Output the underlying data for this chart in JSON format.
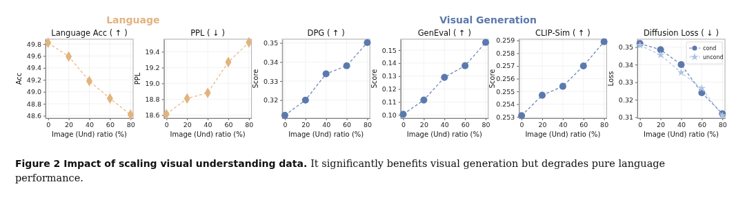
{
  "chart_data": [
    {
      "type": "line",
      "title": "Language Acc ( ↑ )",
      "xlabel": "Image (Und) ratio (%)",
      "ylabel": "Acc",
      "x": [
        0,
        20,
        40,
        60,
        80
      ],
      "xlim": [
        -2.5,
        82.5
      ],
      "xticks": [
        0,
        20,
        40,
        60,
        80
      ],
      "ylim": [
        48.56,
        49.88
      ],
      "yticks": [
        48.6,
        48.8,
        {
          "value": 49,
          "label": "49.0"
        },
        49.2,
        49.4,
        49.6,
        49.8
      ],
      "grid": true,
      "marker": "diamond",
      "line_style": "dashed",
      "series": [
        {
          "color": "#e3b37d",
          "values": [
            49.82,
            49.59,
            49.18,
            48.89,
            48.62
          ]
        }
      ],
      "annotations": [
        "Language",
        "Figure 2  Impact of scaling visual understanding data.",
        "It significantly benefits visual generation but degrades pure language performance."
      ]
    },
    {
      "type": "line",
      "title": "PPL ( ↓ )",
      "xlabel": "Image (Und) ratio (%)",
      "ylabel": "PPL",
      "x": [
        0,
        20,
        40,
        60,
        80
      ],
      "xlim": [
        -2.5,
        82.5
      ],
      "xticks": [
        0,
        20,
        40,
        60,
        80
      ],
      "ylim": [
        18.56,
        19.56
      ],
      "yticks": [
        18.6,
        18.8,
        {
          "value": 19,
          "label": "19.0"
        },
        19.2,
        19.4
      ],
      "grid": true,
      "marker": "diamond",
      "line_style": "dashed",
      "series": [
        {
          "color": "#e3b37d",
          "values": [
            18.61,
            18.81,
            18.88,
            19.27,
            19.52
          ]
        }
      ]
    },
    {
      "type": "line",
      "title": "DPG ( ↑ )",
      "xlabel": "Image (Und) ratio (%)",
      "ylabel": "Score",
      "x": [
        0,
        20,
        40,
        60,
        80
      ],
      "xlim": [
        -2.5,
        82.5
      ],
      "xticks": [
        0,
        20,
        40,
        60,
        80
      ],
      "ylim": [
        0.3105,
        0.352
      ],
      "yticks": [
        0.32,
        0.33,
        0.34,
        0.35
      ],
      "grid": true,
      "marker": "circle",
      "line_style": "dashed",
      "series": [
        {
          "color": "#5b79ad",
          "values": [
            0.312,
            0.32,
            0.3338,
            0.338,
            0.3502
          ]
        }
      ],
      "annotations": [
        "Visual Generation"
      ]
    },
    {
      "type": "line",
      "title": "GenEval ( ↑ )",
      "xlabel": "Image (Und) ratio (%)",
      "ylabel": "Score",
      "x": [
        0,
        20,
        40,
        60,
        80
      ],
      "xlim": [
        -2.5,
        82.5
      ],
      "xticks": [
        0,
        20,
        40,
        60,
        80
      ],
      "ylim": [
        0.0975,
        0.1585
      ],
      "yticks": [
        {
          "value": 0.1,
          "label": "0.10"
        },
        0.11,
        0.12,
        0.13,
        0.14,
        0.15
      ],
      "grid": true,
      "marker": "circle",
      "line_style": "dashed",
      "series": [
        {
          "color": "#5b79ad",
          "values": [
            0.1005,
            0.1115,
            0.129,
            0.138,
            0.156
          ]
        }
      ]
    },
    {
      "type": "line",
      "title": "CLIP-Sim ( ↑ )",
      "xlabel": "Image (Und) ratio (%)",
      "ylabel": "Score",
      "x": [
        0,
        20,
        40,
        60,
        80
      ],
      "xlim": [
        -2.5,
        82.5
      ],
      "xticks": [
        0,
        20,
        40,
        60,
        80
      ],
      "ylim": [
        0.2529,
        0.2591
      ],
      "yticks": [
        0.253,
        0.254,
        0.255,
        0.256,
        0.257,
        0.258,
        0.259
      ],
      "grid": true,
      "marker": "circle",
      "line_style": "dashed",
      "series": [
        {
          "color": "#5b79ad",
          "values": [
            0.2531,
            0.2547,
            0.2554,
            0.257,
            0.2589
          ]
        }
      ]
    },
    {
      "type": "line",
      "title": "Diffusion Loss ( ↓ )",
      "xlabel": "Image (Und) ratio (%)",
      "ylabel": "Loss",
      "x": [
        0,
        20,
        40,
        60,
        80
      ],
      "xlim": [
        -2.5,
        82.5
      ],
      "xticks": [
        0,
        20,
        40,
        60,
        80
      ],
      "ylim": [
        0.3095,
        0.3545
      ],
      "yticks": [
        0.31,
        0.32,
        0.33,
        0.34,
        0.35
      ],
      "grid": true,
      "line_style": "dashed",
      "legend": "top right",
      "series": [
        {
          "name": "cond",
          "color": "#5b79ad",
          "marker": "circle",
          "values": [
            0.352,
            0.3485,
            0.34,
            0.324,
            0.312
          ]
        },
        {
          "name": "uncond",
          "color": "#aec3e3",
          "marker": "star",
          "values": [
            0.351,
            0.3455,
            0.3355,
            0.3265,
            0.311
          ]
        }
      ]
    }
  ]
}
